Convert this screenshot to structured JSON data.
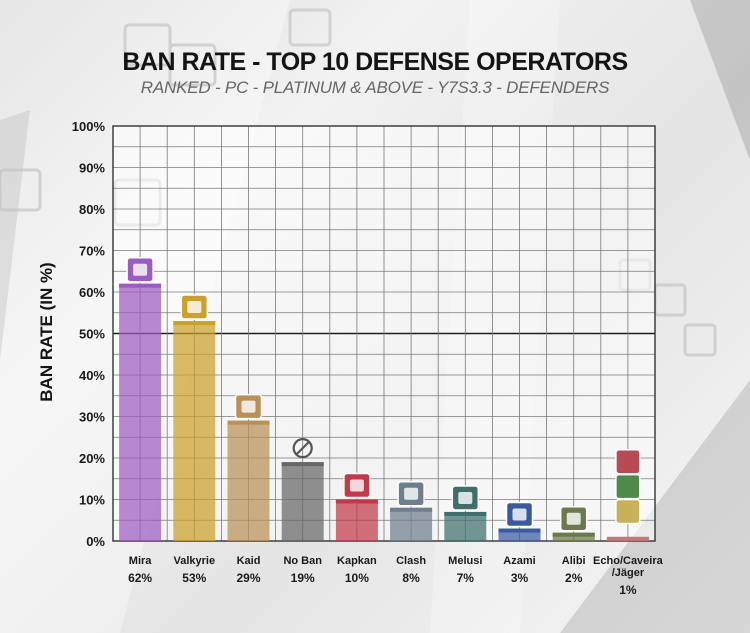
{
  "chart_data": {
    "type": "bar",
    "title": "BAN RATE - TOP 10 DEFENSE OPERATORS",
    "subtitle": "RANKED - PC - PLATINUM & ABOVE - Y7S3.3 - DEFENDERS",
    "xlabel": "",
    "ylabel": "BAN RATE (IN %)",
    "ylim": [
      0,
      100
    ],
    "yticks": [
      "0%",
      "10%",
      "20%",
      "30%",
      "40%",
      "50%",
      "60%",
      "70%",
      "80%",
      "90%",
      "100%"
    ],
    "categories": [
      "Mira",
      "Valkyrie",
      "Kaid",
      "No Ban",
      "Kapkan",
      "Clash",
      "Melusi",
      "Azami",
      "Alibi",
      "Echo/Caveira/Jäger"
    ],
    "category_lines": [
      [
        "Mira"
      ],
      [
        "Valkyrie"
      ],
      [
        "Kaid"
      ],
      [
        "No Ban"
      ],
      [
        "Kapkan"
      ],
      [
        "Clash"
      ],
      [
        "Melusi"
      ],
      [
        "Azami"
      ],
      [
        "Alibi"
      ],
      [
        "Echo/Caveira",
        "/Jäger"
      ]
    ],
    "value_labels": [
      "62%",
      "53%",
      "29%",
      "19%",
      "10%",
      "8%",
      "7%",
      "3%",
      "2%",
      "1%"
    ],
    "values": [
      62,
      53,
      29,
      19,
      10,
      8,
      7,
      3,
      2,
      1
    ],
    "colors": [
      "#9a5cc0",
      "#cba12c",
      "#ba9058",
      "#666666",
      "#c23a49",
      "#6f7e8e",
      "#3f6f6c",
      "#3a5aa0",
      "#6b7a4b",
      "#c07a7a"
    ],
    "icons": [
      "mira-icon",
      "valkyrie-icon",
      "kaid-icon",
      "no-ban-icon",
      "kapkan-icon",
      "clash-icon",
      "melusi-icon",
      "azami-icon",
      "alibi-icon",
      "echo-caveira-jager-icon"
    ],
    "grid": true,
    "legend": "none"
  }
}
